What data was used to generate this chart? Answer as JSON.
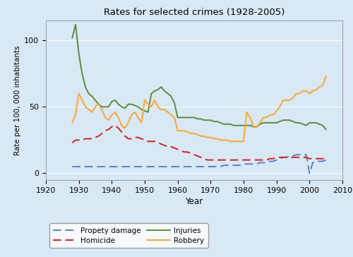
{
  "title": "Rates for selected crimes (1928-2005)",
  "xlabel": "Year",
  "ylabel": "Rate per 100, 000 inhabitants",
  "xlim": [
    1920,
    2010
  ],
  "ylim": [
    -5,
    115
  ],
  "xticks": [
    1920,
    1930,
    1940,
    1950,
    1960,
    1970,
    1980,
    1990,
    2000,
    2010
  ],
  "yticks": [
    0,
    50,
    100
  ],
  "background_color": "#d9e8f5",
  "axes_background": "#d9e8f5",
  "grid_color": "#ffffff",
  "series": {
    "property_damage": {
      "label": "Propety damage",
      "color": "#5b7fbe",
      "linestyle": "dashed",
      "linewidth": 1.4,
      "years": [
        1928,
        1929,
        1930,
        1931,
        1932,
        1933,
        1934,
        1935,
        1936,
        1937,
        1938,
        1939,
        1940,
        1941,
        1942,
        1943,
        1944,
        1945,
        1946,
        1947,
        1948,
        1949,
        1950,
        1951,
        1952,
        1953,
        1954,
        1955,
        1956,
        1957,
        1958,
        1959,
        1960,
        1961,
        1962,
        1963,
        1964,
        1965,
        1966,
        1967,
        1968,
        1969,
        1970,
        1971,
        1972,
        1973,
        1974,
        1975,
        1976,
        1977,
        1978,
        1979,
        1980,
        1981,
        1982,
        1983,
        1984,
        1985,
        1986,
        1987,
        1988,
        1989,
        1990,
        1991,
        1992,
        1993,
        1994,
        1995,
        1996,
        1997,
        1998,
        1999,
        2000,
        2001,
        2002,
        2003,
        2004,
        2005
      ],
      "values": [
        5,
        5,
        5,
        5,
        5,
        5,
        5,
        5,
        5,
        5,
        5,
        5,
        5,
        5,
        5,
        5,
        5,
        5,
        5,
        5,
        5,
        5,
        5,
        5,
        5,
        5,
        5,
        5,
        5,
        5,
        5,
        5,
        5,
        5,
        5,
        5,
        5,
        5,
        5,
        5,
        5,
        5,
        5,
        5,
        5,
        5,
        6,
        6,
        6,
        6,
        6,
        6,
        7,
        7,
        7,
        7,
        7,
        8,
        8,
        8,
        9,
        9,
        10,
        11,
        12,
        12,
        13,
        13,
        14,
        14,
        14,
        14,
        0,
        8,
        9,
        9,
        9,
        10
      ]
    },
    "homicide": {
      "label": "Homicide",
      "color": "#cc2222",
      "linestyle": "dashed",
      "linewidth": 1.4,
      "years": [
        1928,
        1929,
        1930,
        1931,
        1932,
        1933,
        1934,
        1935,
        1936,
        1937,
        1938,
        1939,
        1940,
        1941,
        1942,
        1943,
        1944,
        1945,
        1946,
        1947,
        1948,
        1949,
        1950,
        1951,
        1952,
        1953,
        1954,
        1955,
        1956,
        1957,
        1958,
        1959,
        1960,
        1961,
        1962,
        1963,
        1964,
        1965,
        1966,
        1967,
        1968,
        1969,
        1970,
        1971,
        1972,
        1973,
        1974,
        1975,
        1976,
        1977,
        1978,
        1979,
        1980,
        1981,
        1982,
        1983,
        1984,
        1985,
        1986,
        1987,
        1988,
        1989,
        1990,
        1991,
        1992,
        1993,
        1994,
        1995,
        1996,
        1997,
        1998,
        1999,
        2000,
        2001,
        2002,
        2003,
        2004,
        2005
      ],
      "values": [
        23,
        25,
        25,
        25,
        26,
        26,
        26,
        27,
        28,
        30,
        32,
        33,
        35,
        36,
        34,
        31,
        28,
        26,
        26,
        27,
        27,
        26,
        25,
        24,
        24,
        24,
        23,
        22,
        21,
        20,
        20,
        19,
        18,
        17,
        16,
        16,
        15,
        14,
        13,
        12,
        11,
        10,
        10,
        10,
        10,
        10,
        10,
        10,
        10,
        10,
        10,
        10,
        10,
        10,
        10,
        10,
        10,
        10,
        10,
        10,
        11,
        11,
        12,
        12,
        12,
        12,
        12,
        12,
        12,
        12,
        12,
        12,
        11,
        11,
        11,
        11,
        11,
        11
      ]
    },
    "injuries": {
      "label": "Injuries",
      "color": "#5a8a3c",
      "linestyle": "solid",
      "linewidth": 1.4,
      "years": [
        1928,
        1929,
        1930,
        1931,
        1932,
        1933,
        1934,
        1935,
        1936,
        1937,
        1938,
        1939,
        1940,
        1941,
        1942,
        1943,
        1944,
        1945,
        1946,
        1947,
        1948,
        1949,
        1950,
        1951,
        1952,
        1953,
        1954,
        1955,
        1956,
        1957,
        1958,
        1959,
        1960,
        1961,
        1962,
        1963,
        1964,
        1965,
        1966,
        1967,
        1968,
        1969,
        1970,
        1971,
        1972,
        1973,
        1974,
        1975,
        1976,
        1977,
        1978,
        1979,
        1980,
        1981,
        1982,
        1983,
        1984,
        1985,
        1986,
        1987,
        1988,
        1989,
        1990,
        1991,
        1992,
        1993,
        1994,
        1995,
        1996,
        1997,
        1998,
        1999,
        2000,
        2001,
        2002,
        2003,
        2004,
        2005
      ],
      "values": [
        102,
        112,
        90,
        75,
        65,
        60,
        58,
        55,
        52,
        50,
        50,
        50,
        54,
        55,
        52,
        50,
        49,
        52,
        52,
        51,
        50,
        48,
        47,
        46,
        60,
        62,
        63,
        65,
        62,
        60,
        58,
        53,
        42,
        42,
        42,
        42,
        42,
        42,
        41,
        41,
        40,
        40,
        40,
        39,
        39,
        38,
        37,
        37,
        37,
        36,
        36,
        36,
        36,
        36,
        36,
        35,
        35,
        37,
        38,
        38,
        38,
        38,
        38,
        39,
        40,
        40,
        40,
        39,
        38,
        38,
        37,
        36,
        38,
        38,
        38,
        37,
        36,
        33
      ]
    },
    "robbery": {
      "label": "Robbery",
      "color": "#f5a53a",
      "linestyle": "solid",
      "linewidth": 1.4,
      "years": [
        1928,
        1929,
        1930,
        1931,
        1932,
        1933,
        1934,
        1935,
        1936,
        1937,
        1938,
        1939,
        1940,
        1941,
        1942,
        1943,
        1944,
        1945,
        1946,
        1947,
        1948,
        1949,
        1950,
        1951,
        1952,
        1953,
        1954,
        1955,
        1956,
        1957,
        1958,
        1959,
        1960,
        1961,
        1962,
        1963,
        1964,
        1965,
        1966,
        1967,
        1968,
        1969,
        1970,
        1971,
        1972,
        1973,
        1974,
        1975,
        1976,
        1977,
        1978,
        1979,
        1980,
        1981,
        1982,
        1983,
        1984,
        1985,
        1986,
        1987,
        1988,
        1989,
        1990,
        1991,
        1992,
        1993,
        1994,
        1995,
        1996,
        1997,
        1998,
        1999,
        2000,
        2001,
        2002,
        2003,
        2004,
        2005
      ],
      "values": [
        38,
        44,
        60,
        55,
        50,
        48,
        46,
        50,
        52,
        48,
        42,
        40,
        44,
        46,
        42,
        36,
        34,
        38,
        44,
        46,
        42,
        38,
        55,
        52,
        50,
        55,
        50,
        48,
        48,
        46,
        44,
        42,
        32,
        32,
        32,
        31,
        30,
        30,
        29,
        28,
        28,
        27,
        27,
        26,
        26,
        25,
        25,
        25,
        24,
        24,
        24,
        24,
        24,
        46,
        42,
        35,
        35,
        38,
        42,
        42,
        44,
        44,
        47,
        50,
        55,
        55,
        55,
        57,
        60,
        60,
        62,
        62,
        60,
        62,
        63,
        65,
        66,
        73
      ]
    }
  },
  "legend_order": [
    "property_damage",
    "injuries",
    "homicide",
    "robbery"
  ]
}
